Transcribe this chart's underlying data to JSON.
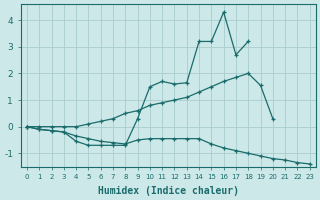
{
  "title": "",
  "xlabel": "Humidex (Indice chaleur)",
  "ylabel": "",
  "bg_color": "#cde8e8",
  "grid_color": "#aacccc",
  "line_color": "#1a6b6b",
  "xlim": [
    -0.5,
    23.5
  ],
  "ylim": [
    -1.5,
    4.6
  ],
  "lines": [
    {
      "x": [
        0,
        1,
        2,
        3,
        4,
        5,
        6,
        7,
        8,
        9,
        10,
        11,
        12,
        13,
        14,
        15,
        16,
        17,
        18,
        19,
        20,
        21,
        22,
        23
      ],
      "y": [
        0.0,
        0.0,
        0.0,
        0.0,
        0.0,
        0.1,
        0.2,
        0.3,
        0.5,
        0.6,
        0.8,
        0.9,
        1.0,
        1.1,
        1.3,
        1.5,
        1.7,
        1.85,
        2.0,
        1.55,
        0.3,
        null,
        null,
        null
      ]
    },
    {
      "x": [
        0,
        1,
        2,
        3,
        4,
        5,
        6,
        7,
        8,
        9,
        10,
        11,
        12,
        13,
        14,
        15,
        16,
        17,
        18,
        19,
        20,
        21,
        22,
        23
      ],
      "y": [
        0.0,
        -0.1,
        -0.15,
        -0.2,
        -0.55,
        -0.7,
        -0.7,
        -0.7,
        -0.7,
        0.3,
        1.5,
        1.7,
        1.6,
        1.65,
        3.2,
        3.2,
        4.3,
        2.7,
        3.2,
        null,
        null,
        null,
        null,
        null
      ]
    },
    {
      "x": [
        0,
        1,
        2,
        3,
        4,
        5,
        6,
        7,
        8,
        9,
        10,
        11,
        12,
        13,
        14,
        15,
        16,
        17,
        18,
        19,
        20,
        21,
        22,
        23
      ],
      "y": [
        0.0,
        -0.1,
        -0.15,
        -0.2,
        -0.35,
        -0.45,
        -0.55,
        -0.6,
        -0.65,
        -0.5,
        -0.45,
        -0.45,
        -0.45,
        -0.45,
        -0.45,
        -0.65,
        -0.8,
        -0.9,
        -1.0,
        -1.1,
        -1.2,
        -1.25,
        -1.35,
        -1.4
      ]
    }
  ]
}
